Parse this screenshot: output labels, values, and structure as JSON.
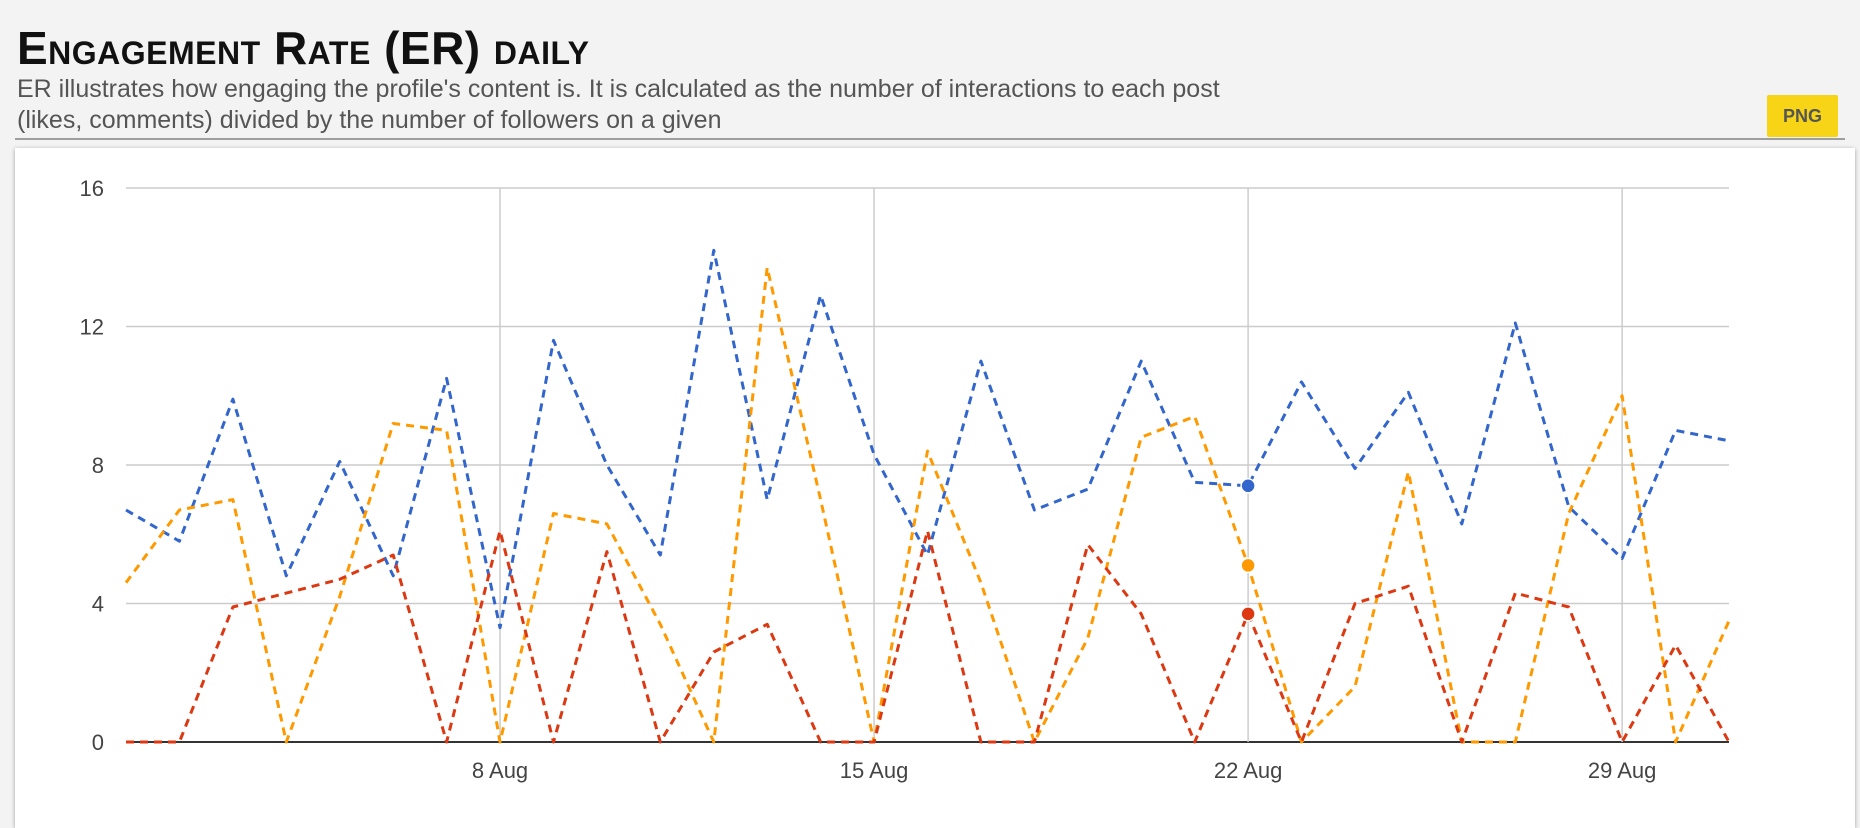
{
  "header": {
    "title": "Engagement Rate (ER) daily",
    "subtitle_line1": "ER illustrates how engaging the profile's content is. It is calculated as the number of interactions to each post",
    "subtitle_line2": "(likes, comments) divided by the number of followers on a given",
    "png_button": "PNG"
  },
  "chart_data": {
    "type": "line",
    "title": "Engagement Rate (ER) daily",
    "x_start": "2025-08-01",
    "x_end": "2025-08-31",
    "x_ticks": [
      {
        "label": "8 Aug",
        "date": "2025-08-08"
      },
      {
        "label": "15 Aug",
        "date": "2025-08-15"
      },
      {
        "label": "22 Aug",
        "date": "2025-08-22"
      },
      {
        "label": "29 Aug",
        "date": "2025-08-29"
      }
    ],
    "ylim": [
      0,
      16
    ],
    "y_ticks": [
      0,
      4,
      8,
      12,
      16
    ],
    "grid": true,
    "line_style": "dashed",
    "x": [
      "2025-08-01",
      "2025-08-02",
      "2025-08-03",
      "2025-08-04",
      "2025-08-05",
      "2025-08-06",
      "2025-08-07",
      "2025-08-08",
      "2025-08-09",
      "2025-08-10",
      "2025-08-11",
      "2025-08-12",
      "2025-08-13",
      "2025-08-14",
      "2025-08-15",
      "2025-08-16",
      "2025-08-17",
      "2025-08-18",
      "2025-08-19",
      "2025-08-20",
      "2025-08-21",
      "2025-08-22",
      "2025-08-23",
      "2025-08-24",
      "2025-08-25",
      "2025-08-26",
      "2025-08-27",
      "2025-08-28",
      "2025-08-29",
      "2025-08-30",
      "2025-08-31"
    ],
    "series": [
      {
        "color": "#3366cc",
        "values": [
          6.7,
          5.8,
          9.9,
          4.8,
          8.1,
          4.8,
          10.5,
          3.3,
          11.6,
          8.0,
          5.4,
          14.2,
          7.0,
          12.9,
          8.3,
          5.4,
          11.0,
          6.7,
          7.3,
          11.0,
          7.5,
          7.4,
          10.4,
          7.9,
          10.1,
          6.3,
          12.1,
          6.8,
          5.3,
          9.0,
          8.7
        ]
      },
      {
        "color": "#ff9900",
        "values": [
          4.6,
          6.7,
          7.0,
          0.0,
          4.2,
          9.2,
          9.0,
          0.0,
          6.6,
          6.3,
          3.4,
          0.0,
          13.7,
          7.0,
          0.0,
          8.4,
          4.6,
          0.0,
          3.0,
          8.8,
          9.4,
          5.1,
          0.0,
          1.6,
          7.8,
          0.0,
          0.0,
          6.6,
          10.0,
          0.0,
          3.5
        ]
      },
      {
        "color": "#dc3912",
        "values": [
          0.0,
          0.0,
          3.9,
          4.3,
          4.7,
          5.4,
          0.0,
          6.1,
          0.0,
          5.5,
          0.0,
          2.6,
          3.4,
          0.0,
          0.0,
          6.1,
          0.0,
          0.0,
          5.7,
          3.7,
          0.0,
          3.7,
          0.0,
          4.0,
          4.5,
          0.0,
          4.3,
          3.9,
          0.0,
          2.8,
          0.0
        ]
      }
    ],
    "highlighted_x": "2025-08-22"
  }
}
